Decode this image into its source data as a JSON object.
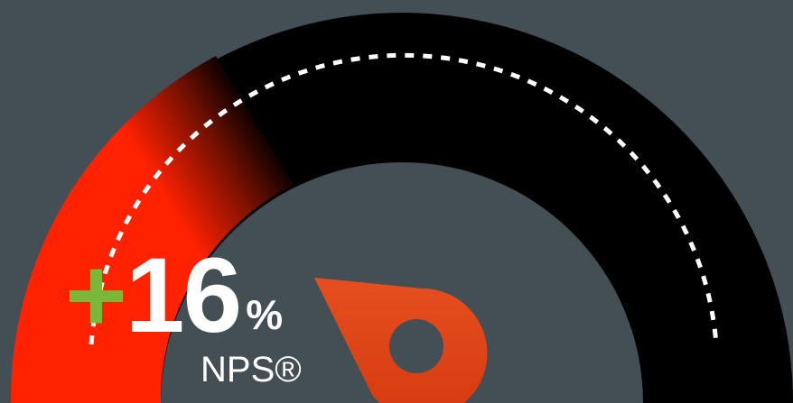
{
  "gauge": {
    "value_fraction": 0.16,
    "colors": {
      "background": "#434f55",
      "track": "#000000",
      "fill": "#ff2200",
      "dashes": "#ffffff",
      "needle_top": "#e24a1c",
      "needle_bottom": "#d93a12"
    },
    "icons": {
      "needle": "map-pin-icon"
    }
  },
  "metric": {
    "sign": "+",
    "value": "16",
    "unit": "%",
    "label": "NPS®",
    "sign_color": "#7bb83a",
    "text_color": "#ffffff"
  }
}
